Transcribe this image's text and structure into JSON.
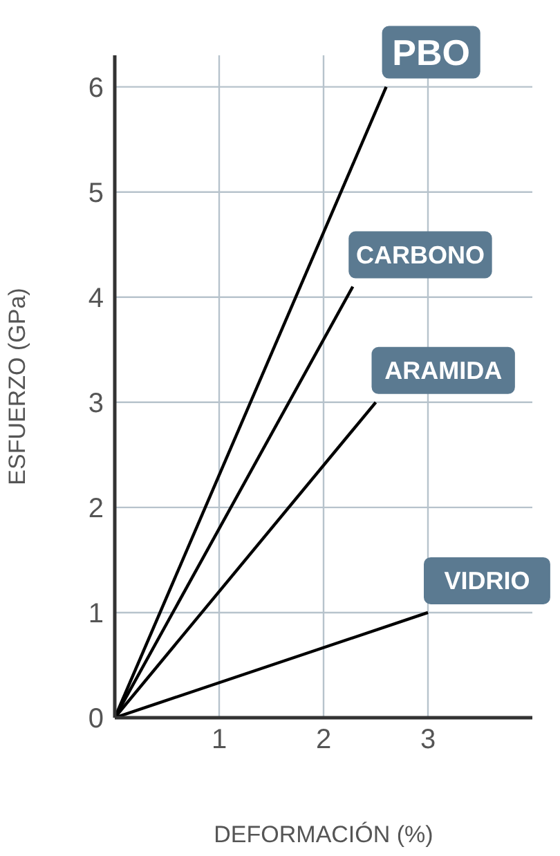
{
  "chart_data": {
    "type": "line",
    "xlabel": "DEFORMACIÓN (%)",
    "ylabel": "ESFUERZO  (GPa)",
    "xlim": [
      0,
      4
    ],
    "xticks": [
      {
        "value": 0,
        "label": null
      },
      1,
      2,
      3
    ],
    "ylim": [
      0,
      6.3
    ],
    "yticks": [
      0,
      1,
      2,
      3,
      4,
      5,
      6
    ],
    "grid": true,
    "marker": "none",
    "line_style": "solid",
    "series": [
      {
        "color": "#000000",
        "x": [
          0,
          2.6
        ],
        "values": [
          0,
          6
        ]
      },
      {
        "color": "#000000",
        "x": [
          0,
          2.28
        ],
        "values": [
          0,
          4.1
        ]
      },
      {
        "color": "#000000",
        "x": [
          0,
          2.5
        ],
        "values": [
          0,
          3
        ]
      },
      {
        "color": "#000000",
        "x": [
          0,
          3
        ],
        "values": [
          0,
          1
        ]
      }
    ],
    "annotations": [
      {
        "text": "PBO",
        "x": 2.6,
        "y": 6
      },
      {
        "text": "CARBONO",
        "x": 2.28,
        "y": 4.1
      },
      {
        "text": "ARAMIDA",
        "x": 2.5,
        "y": 3
      },
      {
        "text": "VIDRIO",
        "x": 3,
        "y": 1
      }
    ]
  }
}
